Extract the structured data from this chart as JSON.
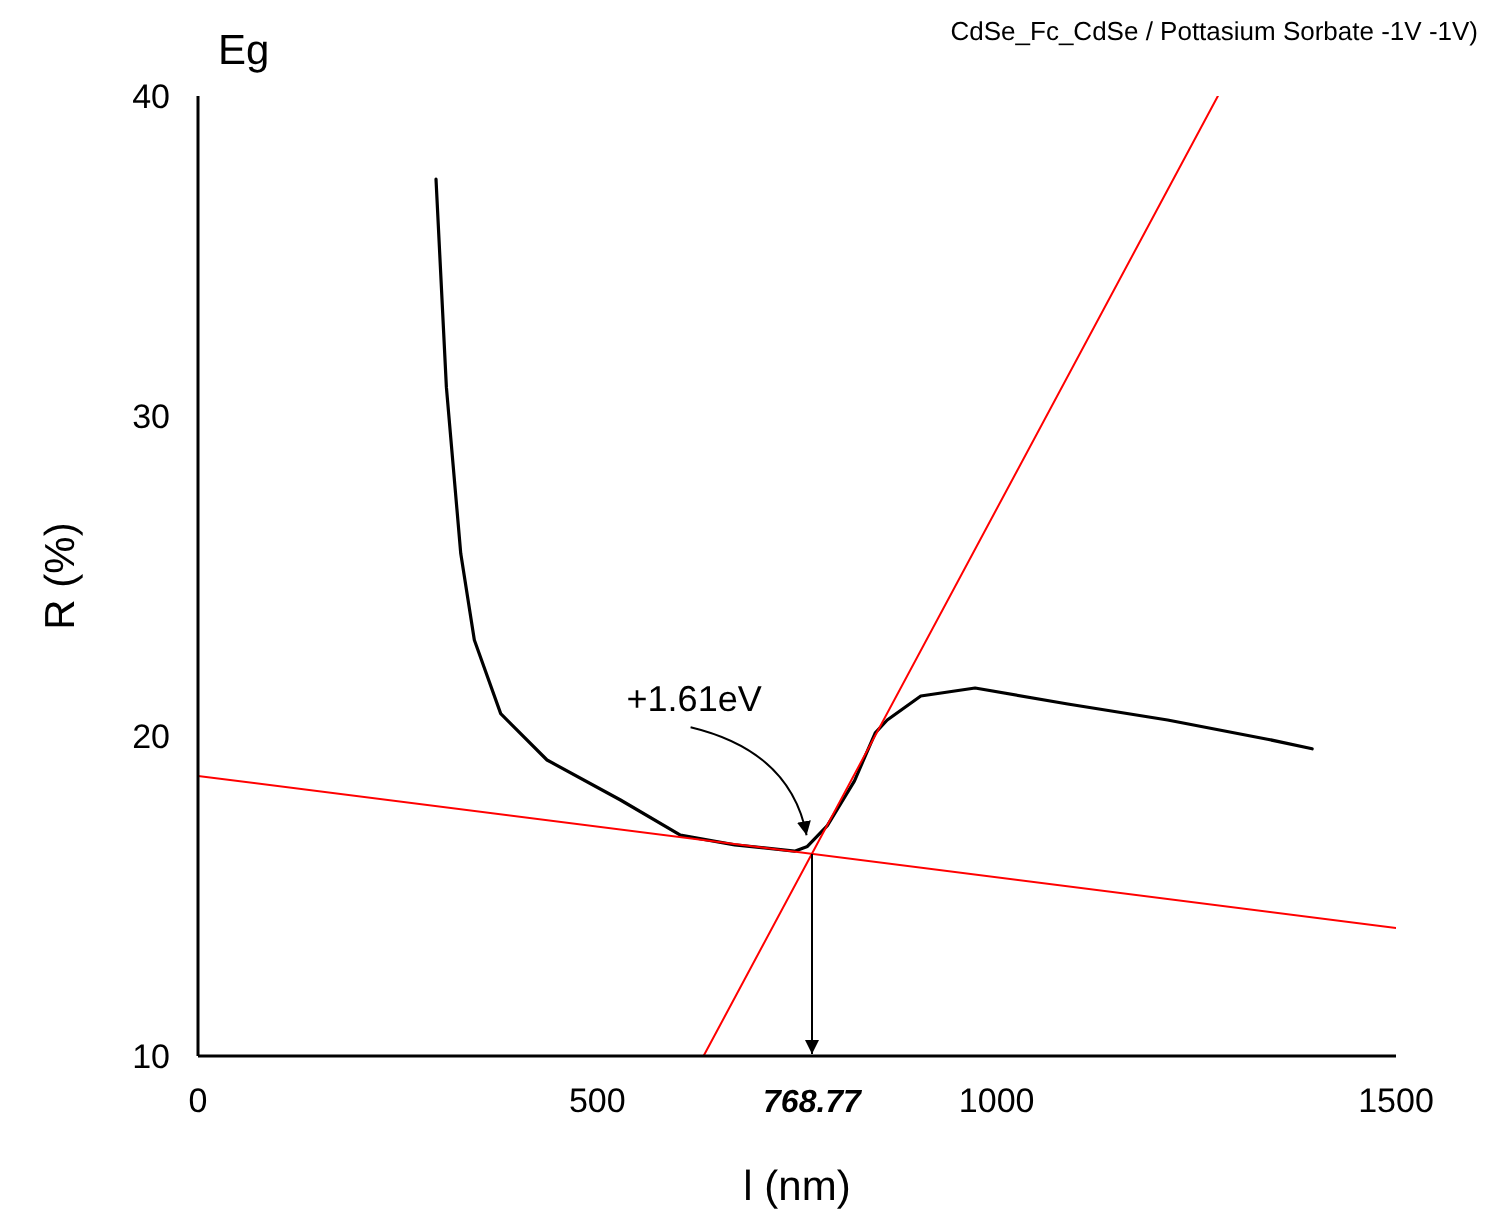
{
  "chart_data": {
    "type": "line",
    "title": "CdSe_Fc_CdSe / Pottasium Sorbate -1V -1V)",
    "xlabel": "l (nm)",
    "ylabel": "R (%)",
    "xlim": [
      0,
      1500
    ],
    "xticks": [
      0,
      500,
      {
        "value": 768.77,
        "label": "768.77"
      },
      1000,
      1500
    ],
    "ylim": [
      10,
      40
    ],
    "yticks": [
      10,
      20,
      30,
      40
    ],
    "grid": false,
    "marker": "none",
    "line_style": "solid",
    "series": [
      {
        "color": "#000000",
        "x": [
          298,
          311,
          329,
          346,
          379,
          437,
          529,
          604,
          672,
          747,
          763,
          788,
          822,
          848,
          863,
          905,
          973,
          1089,
          1214,
          1339,
          1395
        ],
        "values": [
          37.4,
          30.9,
          25.7,
          23.0,
          20.7,
          19.25,
          18.0,
          16.9,
          16.6,
          16.4,
          16.55,
          17.2,
          18.6,
          20.1,
          20.5,
          21.25,
          21.5,
          21.0,
          20.5,
          19.9,
          19.6
        ]
      },
      {
        "color": "#ff0000",
        "x": [
          0,
          1500
        ],
        "values": [
          18.75,
          14.0
        ]
      },
      {
        "color": "#ff0000",
        "x": [
          633,
          1277
        ],
        "values": [
          10,
          40
        ]
      }
    ],
    "annotations": [
      "Eg",
      {
        "text": "+1.61eV",
        "x": 762,
        "y": 16.9
      }
    ]
  }
}
